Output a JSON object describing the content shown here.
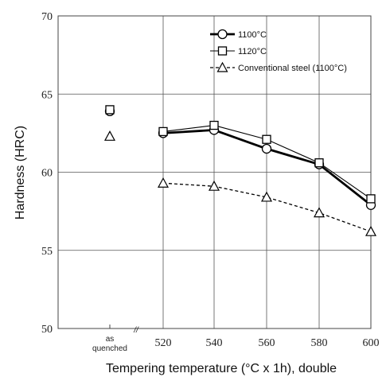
{
  "chart_data": {
    "type": "line",
    "xlabel": "Tempering temperature (°C x 1h), double",
    "ylabel": "Hardness (HRC)",
    "ylim": [
      50,
      70
    ],
    "yticks": [
      "50",
      "55",
      "60",
      "65",
      "70"
    ],
    "categories": [
      "as quenched",
      "520",
      "540",
      "560",
      "580",
      "600"
    ],
    "as_quenched_label_lines": [
      "as",
      "quenched"
    ],
    "axis_break_symbol": "//",
    "grid": true,
    "legend_position": "top-right",
    "series": [
      {
        "name": "1100°C",
        "marker": "circle",
        "line_style": "thick-solid",
        "values": [
          63.9,
          62.5,
          62.7,
          61.5,
          60.5,
          57.9
        ]
      },
      {
        "name": "1120°C",
        "marker": "square",
        "line_style": "thin-solid",
        "values": [
          64.0,
          62.6,
          63.0,
          62.1,
          60.6,
          58.3
        ]
      },
      {
        "name": "Conventional steel (1100°C)",
        "marker": "triangle",
        "line_style": "dashed",
        "values": [
          62.3,
          59.3,
          59.1,
          58.4,
          57.4,
          56.2
        ]
      }
    ]
  }
}
